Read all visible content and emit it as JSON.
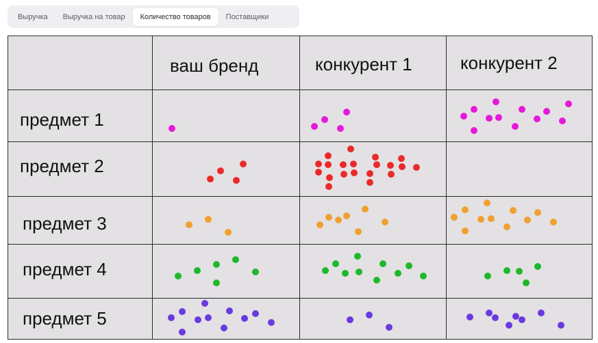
{
  "tabs": [
    {
      "label": "Выручка",
      "active": false
    },
    {
      "label": "Выручка на товар",
      "active": false
    },
    {
      "label": "Количество товаров",
      "active": true
    },
    {
      "label": "Поставщики",
      "active": false
    }
  ],
  "table": {
    "columns": [
      "",
      "ваш бренд",
      "конкурент 1",
      "конкурент 2"
    ],
    "rows": [
      {
        "label": "предмет 1",
        "color": "#e619d8"
      },
      {
        "label": "предмет 2",
        "color": "#ea2a2a"
      },
      {
        "label": "предмет 3",
        "color": "#f0a030"
      },
      {
        "label": "предмет 4",
        "color": "#1fb82a"
      },
      {
        "label": "предмет 5",
        "color": "#6a3ae0"
      }
    ],
    "dot_counts": [
      [
        1,
        4,
        12
      ],
      [
        4,
        20,
        0
      ],
      [
        3,
        7,
        11
      ],
      [
        6,
        10,
        5
      ],
      [
        11,
        3,
        8
      ]
    ]
  }
}
